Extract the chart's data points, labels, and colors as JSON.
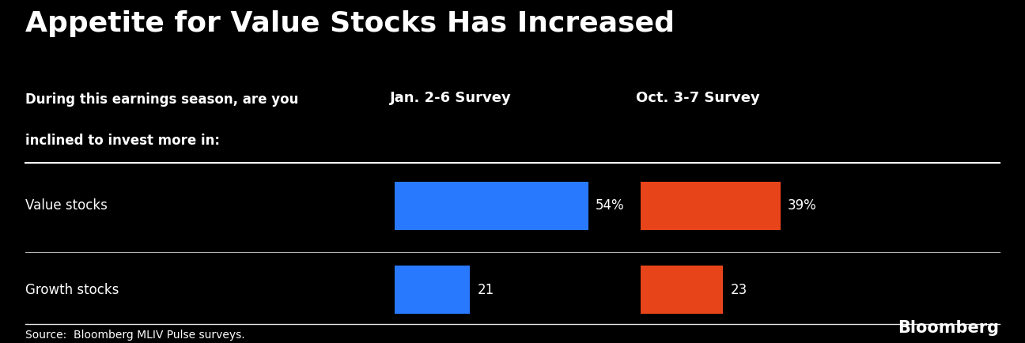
{
  "title": "Appetite for Value Stocks Has Increased",
  "subtitle_line1": "During this earnings season, are you",
  "subtitle_line2": "inclined to invest more in:",
  "col_header1": "Jan. 2-6 Survey",
  "col_header2": "Oct. 3-7 Survey",
  "categories": [
    "Value stocks",
    "Growth stocks"
  ],
  "jan_values": [
    54,
    21
  ],
  "oct_values": [
    39,
    23
  ],
  "jan_labels": [
    "54%",
    "21"
  ],
  "oct_labels": [
    "39%",
    "23"
  ],
  "jan_color": "#2979FF",
  "oct_color": "#E8441A",
  "background_color": "#000000",
  "text_color": "#FFFFFF",
  "source_text": "Source:  Bloomberg MLIV Pulse surveys.",
  "bloomberg_text": "Bloomberg",
  "max_value": 60,
  "title_fontsize": 26,
  "subtitle_fontsize": 12,
  "header_fontsize": 13,
  "category_fontsize": 12,
  "value_fontsize": 12,
  "source_fontsize": 10
}
